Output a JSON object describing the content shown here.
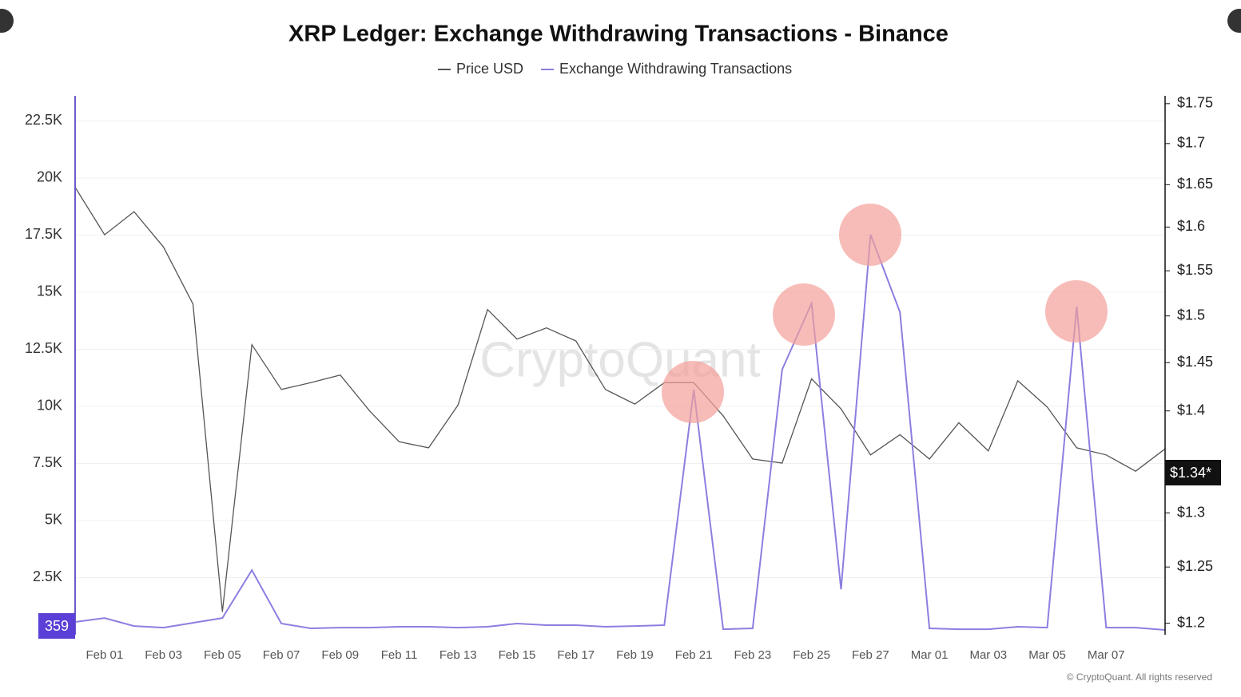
{
  "chart_data": {
    "type": "line",
    "title": "XRP Ledger: Exchange Withdrawing Transactions - Binance",
    "watermark": "CryptoQuant",
    "credit": "© CryptoQuant. All rights reserved",
    "annotations": {
      "left_marker": "359",
      "right_marker": "$1.34*"
    },
    "categories": [
      null,
      "Feb 01",
      null,
      "Feb 03",
      null,
      "Feb 05",
      null,
      "Feb 07",
      null,
      "Feb 09",
      null,
      "Feb 11",
      null,
      "Feb 13",
      null,
      "Feb 15",
      null,
      "Feb 17",
      null,
      "Feb 19",
      null,
      "Feb 21",
      null,
      "Feb 23",
      null,
      "Feb 25",
      null,
      "Feb 27",
      null,
      "Mar 01",
      null,
      "Mar 03",
      null,
      "Mar 05",
      null,
      "Mar 07",
      null,
      null
    ],
    "series": [
      {
        "name": "Price USD",
        "color": "#555555",
        "axis": "y2",
        "values": [
          1.647,
          1.591,
          1.618,
          1.577,
          1.513,
          1.21,
          1.469,
          1.422,
          1.429,
          1.437,
          1.4,
          1.369,
          1.363,
          1.406,
          1.507,
          1.475,
          1.487,
          1.473,
          1.422,
          1.407,
          1.429,
          1.429,
          1.395,
          1.352,
          1.348,
          1.433,
          1.402,
          1.356,
          1.376,
          1.352,
          1.388,
          1.36,
          1.431,
          1.404,
          1.363,
          1.356,
          1.34,
          1.362
        ]
      },
      {
        "name": "Exchange Withdrawing Transactions",
        "color": "#8b7fe0",
        "values": [
          560,
          730,
          380,
          310,
          520,
          730,
          2830,
          490,
          280,
          310,
          310,
          350,
          350,
          310,
          350,
          490,
          420,
          420,
          350,
          380,
          420,
          10730,
          240,
          280,
          11610,
          14510,
          1990,
          17520,
          14130,
          280,
          240,
          240,
          350,
          310,
          14370,
          310,
          310,
          210
        ]
      }
    ],
    "ylim": [
      0,
      23600
    ],
    "yticks": [
      {
        "value": 2500,
        "label": "2.5K"
      },
      {
        "value": 5000,
        "label": "5K"
      },
      {
        "value": 7500,
        "label": "7.5K"
      },
      {
        "value": 10000,
        "label": "10K"
      },
      {
        "value": 12500,
        "label": "12.5K"
      },
      {
        "value": 15000,
        "label": "15K"
      },
      {
        "value": 17500,
        "label": "17.5K"
      },
      {
        "value": 20000,
        "label": "20K"
      },
      {
        "value": 22500,
        "label": "22.5K"
      }
    ],
    "y2lim": [
      1.19,
      1.76
    ],
    "y2log": true,
    "y2ticks": [
      {
        "value": 1.2,
        "label": "$1.2"
      },
      {
        "value": 1.25,
        "label": "$1.25"
      },
      {
        "value": 1.3,
        "label": "$1.3"
      },
      {
        "value": 1.4,
        "label": "$1.4"
      },
      {
        "value": 1.45,
        "label": "$1.45"
      },
      {
        "value": 1.5,
        "label": "$1.5"
      },
      {
        "value": 1.55,
        "label": "$1.55"
      },
      {
        "value": 1.6,
        "label": "$1.6"
      },
      {
        "value": 1.65,
        "label": "$1.65"
      },
      {
        "value": 1.7,
        "label": "$1.7"
      },
      {
        "value": 1.75,
        "label": "$1.75"
      }
    ],
    "grid": true,
    "legend": "top"
  }
}
